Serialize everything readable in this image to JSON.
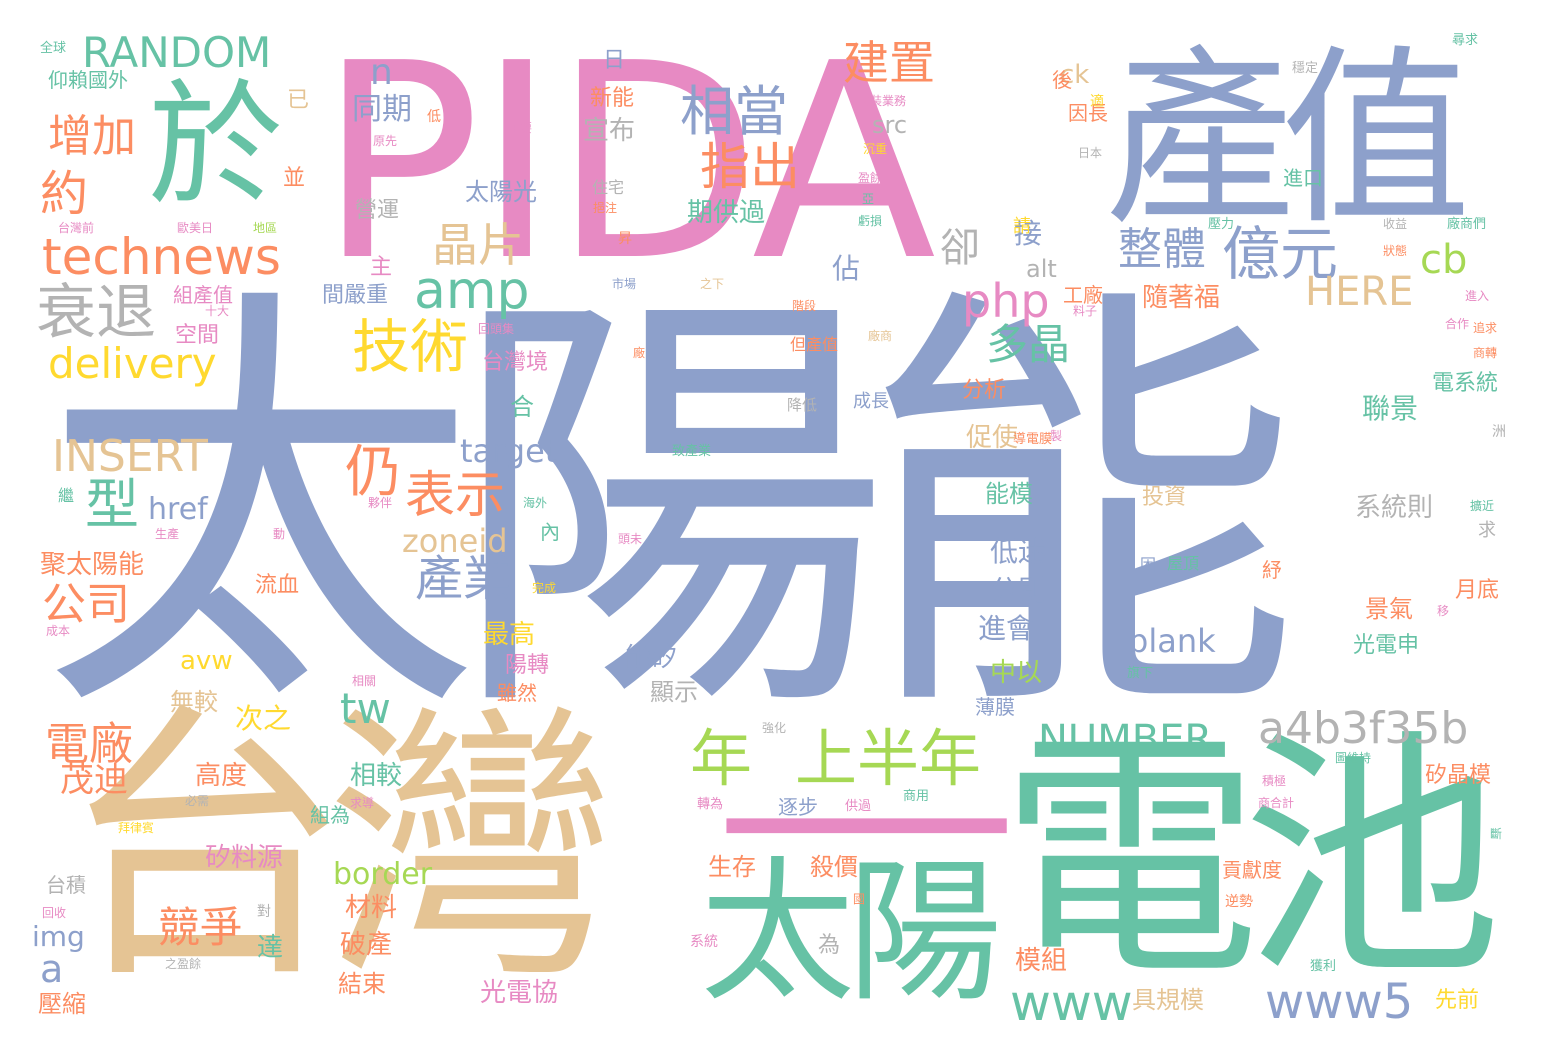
{
  "colors": {
    "pink": "#e78ac3",
    "blue": "#8da0cb",
    "green": "#66c2a5",
    "orange": "#fc8d62",
    "tan": "#e5c494",
    "yellow": "#ffd92f",
    "lime": "#a6d854",
    "gray": "#b3b3b3"
  },
  "words": [
    {
      "text": "PIDA",
      "c": "pink"
    },
    {
      "text": "太陽能",
      "c": "blue"
    },
    {
      "text": "產值",
      "c": "blue"
    },
    {
      "text": "於",
      "c": "green"
    },
    {
      "text": "台灣",
      "c": "tan"
    },
    {
      "text": "電池",
      "c": "green"
    },
    {
      "text": "太陽",
      "c": "green"
    },
    {
      "text": "一",
      "c": "pink"
    },
    {
      "text": "RANDOM",
      "c": "green"
    },
    {
      "text": "technews",
      "c": "orange"
    },
    {
      "text": "衰退",
      "c": "gray"
    },
    {
      "text": "delivery",
      "c": "yellow"
    },
    {
      "text": "INSERT",
      "c": "tan"
    },
    {
      "text": "amp",
      "c": "green"
    },
    {
      "text": "技術",
      "c": "yellow"
    },
    {
      "text": "晶片",
      "c": "tan"
    },
    {
      "text": "相當",
      "c": "blue"
    },
    {
      "text": "指出",
      "c": "orange"
    },
    {
      "text": "建置",
      "c": "orange"
    },
    {
      "text": "億元",
      "c": "blue"
    },
    {
      "text": "整體",
      "c": "blue"
    },
    {
      "text": "php",
      "c": "pink"
    },
    {
      "text": "多晶",
      "c": "green"
    },
    {
      "text": "HERE",
      "c": "tan"
    },
    {
      "text": "cb",
      "c": "lime"
    },
    {
      "text": "年",
      "c": "lime"
    },
    {
      "text": "上半年",
      "c": "lime"
    },
    {
      "text": "a4b3f35b",
      "c": "gray"
    },
    {
      "text": "NUMBER",
      "c": "green"
    },
    {
      "text": "www",
      "c": "green"
    },
    {
      "text": "www5",
      "c": "blue"
    },
    {
      "text": "型",
      "c": "green"
    },
    {
      "text": "仍",
      "c": "orange"
    },
    {
      "text": "表示",
      "c": "orange"
    },
    {
      "text": "產業",
      "c": "blue"
    },
    {
      "text": "公司",
      "c": "orange"
    },
    {
      "text": "增加",
      "c": "orange"
    },
    {
      "text": "約",
      "c": "orange"
    },
    {
      "text": "tw",
      "c": "green"
    },
    {
      "text": "zoneid",
      "c": "tan"
    },
    {
      "text": "target",
      "c": "blue"
    },
    {
      "text": "電廠",
      "c": "orange"
    },
    {
      "text": "茂迪",
      "c": "orange"
    },
    {
      "text": "競爭",
      "c": "orange"
    },
    {
      "text": "blank",
      "c": "blue"
    },
    {
      "text": "n",
      "c": "blue"
    },
    {
      "text": "卻",
      "c": "gray"
    },
    {
      "text": "a",
      "c": "blue"
    },
    {
      "text": "img",
      "c": "blue"
    },
    {
      "text": "border",
      "c": "lime"
    },
    {
      "text": "alt",
      "c": "gray"
    },
    {
      "text": "ck",
      "c": "tan"
    },
    {
      "text": "src",
      "c": "gray"
    },
    {
      "text": "href",
      "c": "blue"
    },
    {
      "text": "avw",
      "c": "yellow"
    },
    {
      "text": "仰賴國外",
      "c": "green"
    },
    {
      "text": "同期",
      "c": "blue"
    },
    {
      "text": "宣布",
      "c": "gray"
    },
    {
      "text": "新能",
      "c": "orange"
    },
    {
      "text": "太陽光",
      "c": "blue"
    },
    {
      "text": "期供過",
      "c": "green"
    },
    {
      "text": "營運",
      "c": "gray"
    },
    {
      "text": "接",
      "c": "blue"
    },
    {
      "text": "主",
      "c": "pink"
    },
    {
      "text": "佔",
      "c": "blue"
    },
    {
      "text": "間嚴重",
      "c": "blue"
    },
    {
      "text": "工廠",
      "c": "orange"
    },
    {
      "text": "隨著福",
      "c": "orange"
    },
    {
      "text": "台灣境",
      "c": "pink"
    },
    {
      "text": "合",
      "c": "green"
    },
    {
      "text": "系統則",
      "c": "gray"
    },
    {
      "text": "聯景",
      "c": "green"
    },
    {
      "text": "電系統",
      "c": "green"
    },
    {
      "text": "分析",
      "c": "orange"
    },
    {
      "text": "促使",
      "c": "tan"
    },
    {
      "text": "能模",
      "c": "green"
    },
    {
      "text": "低迷",
      "c": "blue"
    },
    {
      "text": "分別",
      "c": "blue"
    },
    {
      "text": "進會",
      "c": "blue"
    },
    {
      "text": "中以",
      "c": "lime"
    },
    {
      "text": "薄膜",
      "c": "blue"
    },
    {
      "text": "景氣",
      "c": "orange"
    },
    {
      "text": "光電申",
      "c": "green"
    },
    {
      "text": "月底",
      "c": "orange"
    },
    {
      "text": "矽晶模",
      "c": "orange"
    },
    {
      "text": "能矽",
      "c": "blue"
    },
    {
      "text": "顯示",
      "c": "gray"
    },
    {
      "text": "最高",
      "c": "yellow"
    },
    {
      "text": "陽轉",
      "c": "pink"
    },
    {
      "text": "雖然",
      "c": "orange"
    },
    {
      "text": "次之",
      "c": "yellow"
    },
    {
      "text": "無較",
      "c": "tan"
    },
    {
      "text": "相較",
      "c": "green"
    },
    {
      "text": "組為",
      "c": "green"
    },
    {
      "text": "高度",
      "c": "orange"
    },
    {
      "text": "矽料源",
      "c": "pink"
    },
    {
      "text": "生存",
      "c": "orange"
    },
    {
      "text": "殺價",
      "c": "orange"
    },
    {
      "text": "材料",
      "c": "orange"
    },
    {
      "text": "達",
      "c": "green"
    },
    {
      "text": "破產",
      "c": "orange"
    },
    {
      "text": "結束",
      "c": "orange"
    },
    {
      "text": "光電協",
      "c": "pink"
    },
    {
      "text": "模組",
      "c": "orange"
    },
    {
      "text": "具規模",
      "c": "tan"
    },
    {
      "text": "先前",
      "c": "yellow"
    },
    {
      "text": "聚太陽能",
      "c": "orange"
    },
    {
      "text": "流血",
      "c": "orange"
    },
    {
      "text": "壓縮",
      "c": "orange"
    },
    {
      "text": "台積",
      "c": "gray"
    },
    {
      "text": "空間",
      "c": "pink"
    },
    {
      "text": "組產值",
      "c": "pink"
    },
    {
      "text": "進口",
      "c": "green"
    },
    {
      "text": "因長",
      "c": "orange"
    },
    {
      "text": "後",
      "c": "orange"
    },
    {
      "text": "投資",
      "c": "tan"
    },
    {
      "text": "貢獻度",
      "c": "orange"
    },
    {
      "text": "逐步",
      "c": "blue"
    },
    {
      "text": "紓",
      "c": "orange"
    },
    {
      "text": "困",
      "c": "blue"
    },
    {
      "text": "屋頂",
      "c": "green"
    },
    {
      "text": "求",
      "c": "gray"
    },
    {
      "text": "成長",
      "c": "blue"
    },
    {
      "text": "降低",
      "c": "gray"
    },
    {
      "text": "但產值",
      "c": "orange"
    },
    {
      "text": "為",
      "c": "gray"
    },
    {
      "text": "日",
      "c": "blue"
    },
    {
      "text": "已",
      "c": "tan"
    },
    {
      "text": "並",
      "c": "orange"
    },
    {
      "text": "全球",
      "c": "green"
    },
    {
      "text": "低",
      "c": "orange"
    },
    {
      "text": "住宅",
      "c": "gray"
    },
    {
      "text": "繼",
      "c": "green"
    },
    {
      "text": "內",
      "c": "green"
    },
    {
      "text": "請",
      "c": "yellow"
    },
    {
      "text": "安裝業務",
      "c": "pink"
    },
    {
      "text": "穩定",
      "c": "gray"
    },
    {
      "text": "尋求",
      "c": "green"
    },
    {
      "text": "日本",
      "c": "gray"
    },
    {
      "text": "主要",
      "c": "pink"
    },
    {
      "text": "原先",
      "c": "pink"
    },
    {
      "text": "沉重",
      "c": "yellow"
    },
    {
      "text": "盈餘",
      "c": "pink"
    },
    {
      "text": "虧損",
      "c": "green"
    },
    {
      "text": "市場",
      "c": "blue"
    },
    {
      "text": "之下",
      "c": "tan"
    },
    {
      "text": "階段",
      "c": "orange"
    },
    {
      "text": "料子",
      "c": "pink"
    },
    {
      "text": "歐美日",
      "c": "pink"
    },
    {
      "text": "地區",
      "c": "lime"
    },
    {
      "text": "台灣前",
      "c": "pink"
    },
    {
      "text": "十大",
      "c": "pink"
    },
    {
      "text": "回收",
      "c": "pink"
    },
    {
      "text": "海外",
      "c": "green"
    },
    {
      "text": "夥伴",
      "c": "pink"
    },
    {
      "text": "生產",
      "c": "pink"
    },
    {
      "text": "動",
      "c": "pink"
    },
    {
      "text": "完成",
      "c": "yellow"
    },
    {
      "text": "成本",
      "c": "pink"
    },
    {
      "text": "致產業",
      "c": "green"
    },
    {
      "text": "強化",
      "c": "gray"
    },
    {
      "text": "相關",
      "c": "pink"
    },
    {
      "text": "必需",
      "c": "gray"
    },
    {
      "text": "求導",
      "c": "pink"
    },
    {
      "text": "轉為",
      "c": "pink"
    },
    {
      "text": "供過",
      "c": "pink"
    },
    {
      "text": "商用",
      "c": "green"
    },
    {
      "text": "之盈餘",
      "c": "gray"
    },
    {
      "text": "對",
      "c": "gray"
    },
    {
      "text": "系統",
      "c": "pink"
    },
    {
      "text": "拜律賓",
      "c": "yellow"
    },
    {
      "text": "逆勢",
      "c": "orange"
    },
    {
      "text": "獲利",
      "c": "green"
    },
    {
      "text": "旗下",
      "c": "green"
    },
    {
      "text": "積極",
      "c": "pink"
    },
    {
      "text": "商合計",
      "c": "pink"
    },
    {
      "text": "圖維持",
      "c": "green"
    },
    {
      "text": "廠商們",
      "c": "green"
    },
    {
      "text": "收益",
      "c": "gray"
    },
    {
      "text": "狀態",
      "c": "orange"
    },
    {
      "text": "進入",
      "c": "pink"
    },
    {
      "text": "追求",
      "c": "orange"
    },
    {
      "text": "合作",
      "c": "pink"
    },
    {
      "text": "商轉",
      "c": "orange"
    },
    {
      "text": "洲",
      "c": "gray"
    },
    {
      "text": "擴近",
      "c": "green"
    },
    {
      "text": "移",
      "c": "pink"
    },
    {
      "text": "斷",
      "c": "green"
    },
    {
      "text": "導電膜",
      "c": "orange"
    },
    {
      "text": "製",
      "c": "pink"
    },
    {
      "text": "廠",
      "c": "orange"
    },
    {
      "text": "廠商",
      "c": "tan"
    },
    {
      "text": "壓力",
      "c": "green"
    },
    {
      "text": "昇",
      "c": "orange"
    },
    {
      "text": "挹注",
      "c": "orange"
    },
    {
      "text": "亞",
      "c": "green"
    },
    {
      "text": "國",
      "c": "orange"
    },
    {
      "text": "頭未",
      "c": "pink"
    },
    {
      "text": "回頭集",
      "c": "pink"
    },
    {
      "text": "適",
      "c": "yellow"
    }
  ]
}
